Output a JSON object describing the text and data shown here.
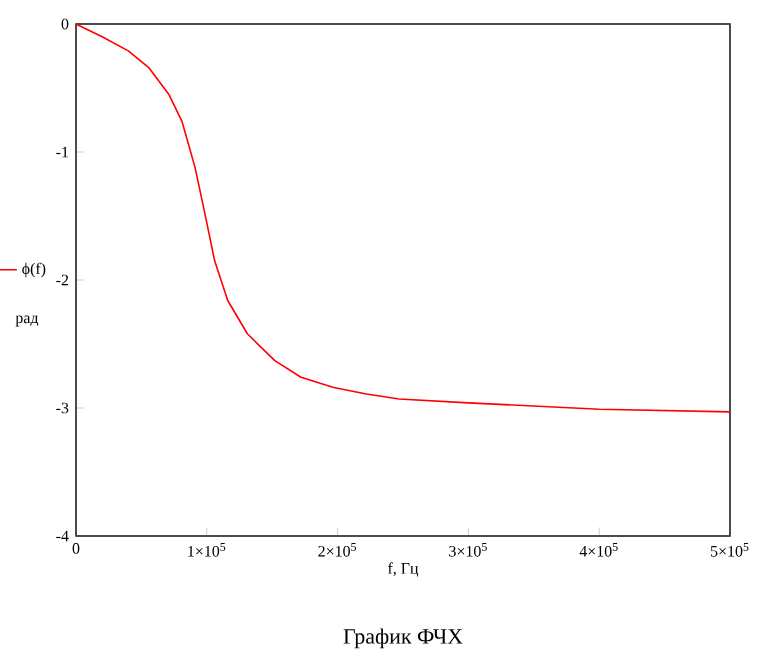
{
  "chart_data": {
    "type": "line",
    "title": "График     ФЧХ",
    "xlabel": "f, Гц",
    "ylabel": "рад",
    "x": [
      0,
      20000,
      40000,
      55600,
      71000,
      81000,
      91000,
      98500,
      106000,
      116000,
      131000,
      152000,
      172000,
      197000,
      222000,
      247000,
      300000,
      400000,
      500000
    ],
    "series": [
      {
        "name": "ϕ(f)",
        "color": "#ff0000",
        "values": [
          0,
          -0.1,
          -0.21,
          -0.34,
          -0.55,
          -0.76,
          -1.12,
          -1.48,
          -1.85,
          -2.16,
          -2.42,
          -2.63,
          -2.76,
          -2.84,
          -2.89,
          -2.93,
          -2.96,
          -3.01,
          -3.03
        ]
      }
    ],
    "xlim": [
      0,
      500000
    ],
    "ylim": [
      -4,
      0
    ],
    "xticks": [
      0,
      {
        "value": 100000,
        "label": "1×10$^{5}$"
      },
      {
        "value": 200000,
        "label": "2×10$^{5}$"
      },
      {
        "value": 300000,
        "label": "3×10$^{5}$"
      },
      {
        "value": 400000,
        "label": "4×10$^{5}$"
      },
      {
        "value": 500000,
        "label": "5×10$^{5}$"
      }
    ],
    "yticks": [
      0,
      -1,
      -2,
      -3,
      -4
    ],
    "legend": "left",
    "grid": false,
    "marker": "none",
    "line_style": "solid"
  }
}
